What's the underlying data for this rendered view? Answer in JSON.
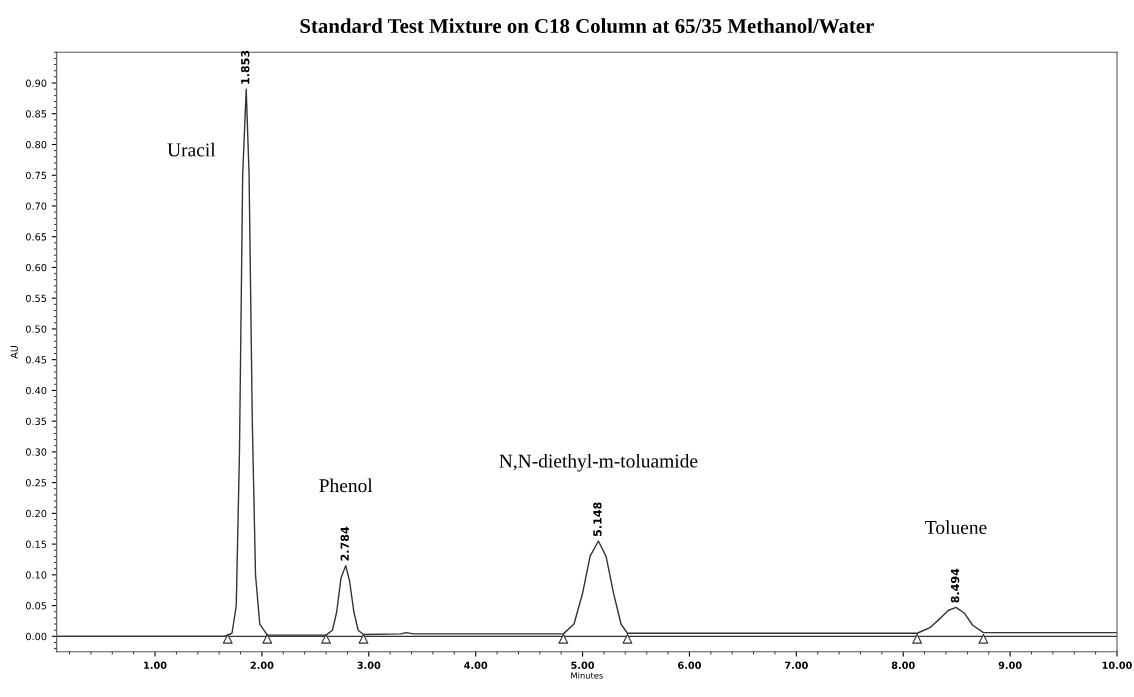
{
  "chart_data": {
    "type": "line",
    "title": "Standard Test Mixture on C18 Column at 65/35 Methanol/Water",
    "xlabel": "Minutes",
    "ylabel": "AU",
    "xlim": [
      0.08,
      10.0
    ],
    "ylim": [
      -0.025,
      0.95
    ],
    "xticks": [
      {
        "value": 1,
        "label": "1.00"
      },
      {
        "value": 2,
        "label": "2.00"
      },
      {
        "value": 3,
        "label": "3.00"
      },
      {
        "value": 4,
        "label": "4.00"
      },
      {
        "value": 5,
        "label": "5.00"
      },
      {
        "value": 6,
        "label": "6.00"
      },
      {
        "value": 7,
        "label": "7.00"
      },
      {
        "value": 8,
        "label": "8.00"
      },
      {
        "value": 9,
        "label": "9.00"
      },
      {
        "value": 10,
        "label": "10.00"
      }
    ],
    "yticks": [
      {
        "value": 0,
        "label": "0.00"
      },
      {
        "value": 0.05,
        "label": "0.05"
      },
      {
        "value": 0.1,
        "label": "0.10"
      },
      {
        "value": 0.15,
        "label": "0.15"
      },
      {
        "value": 0.2,
        "label": "0.20"
      },
      {
        "value": 0.25,
        "label": "0.25"
      },
      {
        "value": 0.3,
        "label": "0.30"
      },
      {
        "value": 0.35,
        "label": "0.35"
      },
      {
        "value": 0.4,
        "label": "0.40"
      },
      {
        "value": 0.45,
        "label": "0.45"
      },
      {
        "value": 0.5,
        "label": "0.50"
      },
      {
        "value": 0.55,
        "label": "0.55"
      },
      {
        "value": 0.6,
        "label": "0.60"
      },
      {
        "value": 0.65,
        "label": "0.65"
      },
      {
        "value": 0.7,
        "label": "0.70"
      },
      {
        "value": 0.75,
        "label": "0.75"
      },
      {
        "value": 0.8,
        "label": "0.80"
      },
      {
        "value": 0.85,
        "label": "0.85"
      },
      {
        "value": 0.9,
        "label": "0.90"
      }
    ],
    "grid": false,
    "legend": false,
    "series": [
      {
        "color": "#333333",
        "line_style": "solid",
        "marker": "none",
        "x": [
          0.08,
          1.0,
          1.65,
          1.72,
          1.76,
          1.79,
          1.82,
          1.853,
          1.88,
          1.91,
          1.94,
          1.98,
          2.05,
          2.6,
          2.66,
          2.7,
          2.74,
          2.784,
          2.82,
          2.86,
          2.9,
          2.95,
          3.3,
          3.35,
          3.42,
          4.82,
          4.92,
          5.0,
          5.07,
          5.148,
          5.22,
          5.29,
          5.36,
          5.42,
          8.13,
          8.25,
          8.35,
          8.42,
          8.494,
          8.57,
          8.65,
          8.75,
          10.0
        ],
        "values": [
          0.0,
          0.0,
          0.0,
          0.005,
          0.05,
          0.3,
          0.75,
          0.89,
          0.75,
          0.35,
          0.1,
          0.02,
          0.002,
          0.002,
          0.01,
          0.04,
          0.095,
          0.115,
          0.09,
          0.04,
          0.01,
          0.003,
          0.004,
          0.006,
          0.004,
          0.004,
          0.02,
          0.07,
          0.13,
          0.155,
          0.13,
          0.07,
          0.02,
          0.005,
          0.005,
          0.014,
          0.03,
          0.042,
          0.047,
          0.038,
          0.018,
          0.006,
          0.006
        ]
      },
      {
        "type": "scatter",
        "color": "#333333",
        "marker": "triangle",
        "x": [
          1.68,
          2.05,
          2.6,
          2.95,
          4.82,
          5.42,
          8.13,
          8.75
        ],
        "values": [
          -0.004,
          -0.004,
          -0.004,
          -0.004,
          -0.004,
          -0.004,
          -0.004,
          -0.004
        ]
      }
    ],
    "annotations": [
      {
        "text": "1.853",
        "x": 1.853,
        "y": 0.89
      },
      {
        "text": "2.784",
        "x": 2.784,
        "y": 0.115
      },
      {
        "text": "5.148",
        "x": 5.148,
        "y": 0.155
      },
      {
        "text": "8.494",
        "x": 8.494,
        "y": 0.047
      },
      "Uracil",
      "Phenol",
      "N,N-diethyl-m-toluamide",
      "Toluene"
    ],
    "ref_lines": [
      {
        "axis": "y",
        "value": 0,
        "color": "#333333"
      }
    ]
  }
}
